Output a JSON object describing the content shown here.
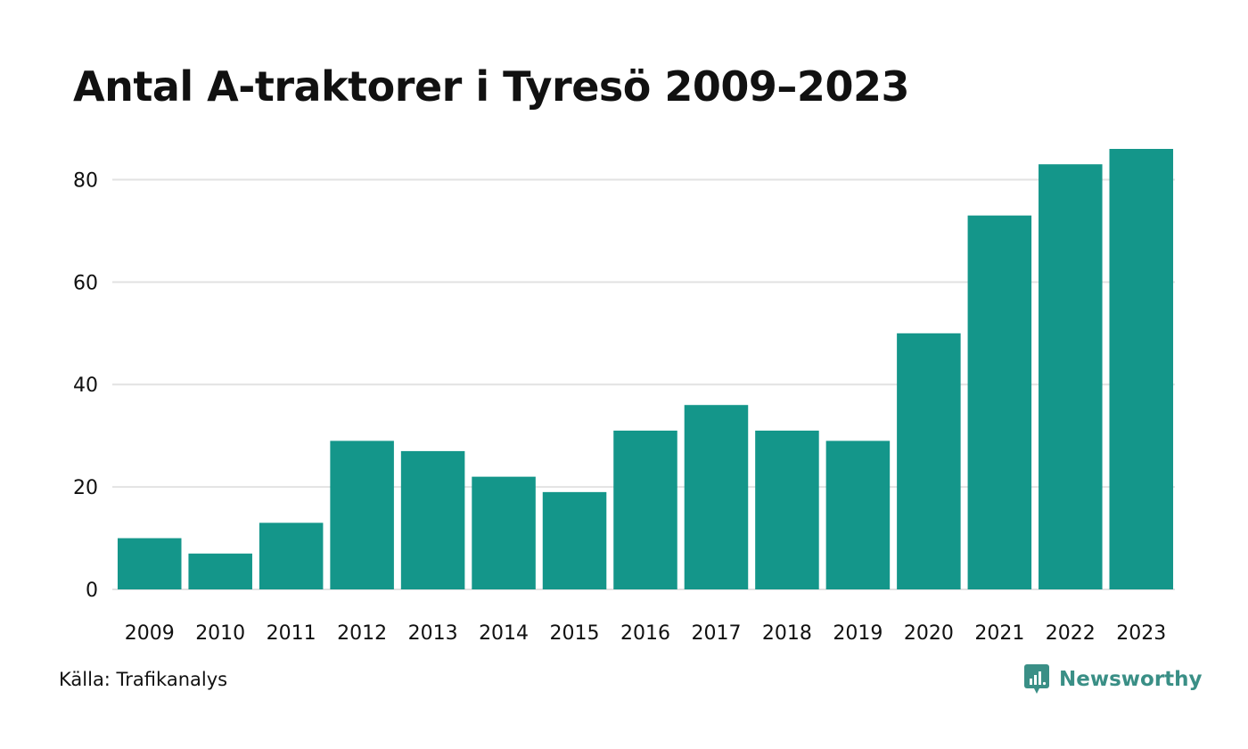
{
  "title": "Antal A-traktorer i Tyresö 2009–2023",
  "source": "Källa: Trafikanalys",
  "logo": {
    "text": "Newsworthy",
    "icon": "newsworthy-logo-icon",
    "color": "#3a8f86"
  },
  "chart_data": {
    "type": "bar",
    "title": "Antal A-traktorer i Tyresö 2009–2023",
    "xlabel": "",
    "ylabel": "",
    "categories": [
      "2009",
      "2010",
      "2011",
      "2012",
      "2013",
      "2014",
      "2015",
      "2016",
      "2017",
      "2018",
      "2019",
      "2020",
      "2021",
      "2022",
      "2023"
    ],
    "values": [
      10,
      7,
      13,
      29,
      27,
      22,
      19,
      31,
      36,
      31,
      29,
      50,
      73,
      83,
      86
    ],
    "ylim": [
      0,
      86
    ],
    "yticks": [
      0,
      20,
      40,
      60,
      80
    ],
    "grid": true,
    "bar_color": "#14968a",
    "grid_color": "#e2e2e2"
  }
}
